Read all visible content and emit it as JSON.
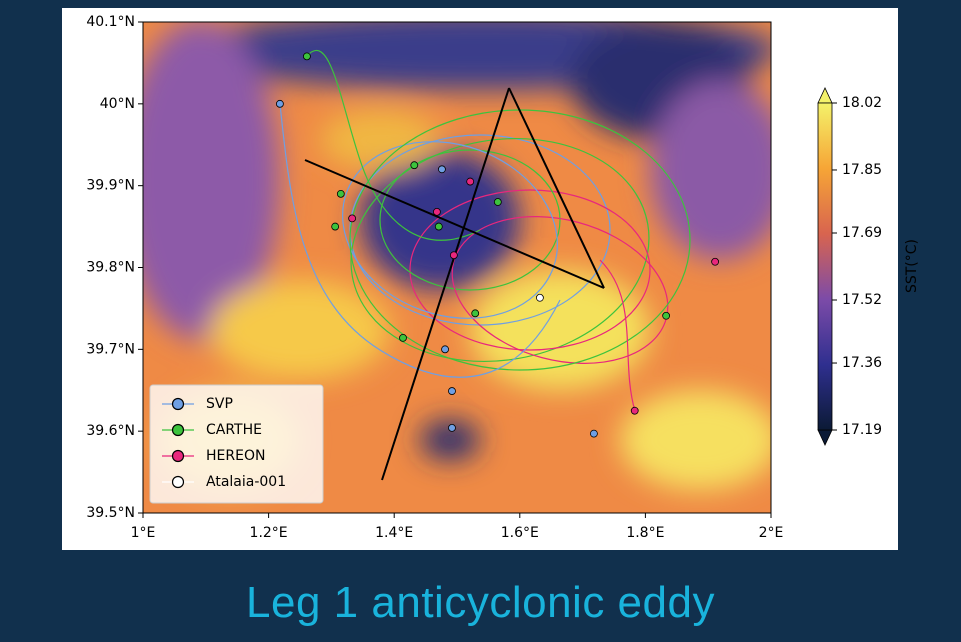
{
  "chart_data": {
    "type": "scatter",
    "xlim": [
      1,
      2
    ],
    "ylim": [
      39.5,
      40.1
    ],
    "xticks": [
      {
        "value": 1,
        "label": "1°E"
      },
      {
        "value": 1.2,
        "label": "1.2°E"
      },
      {
        "value": 1.4,
        "label": "1.4°E"
      },
      {
        "value": 1.6,
        "label": "1.6°E"
      },
      {
        "value": 1.8,
        "label": "1.8°E"
      },
      {
        "value": 2,
        "label": "2°E"
      }
    ],
    "yticks": [
      {
        "value": 39.5,
        "label": "39.5°N"
      },
      {
        "value": 39.6,
        "label": "39.6°N"
      },
      {
        "value": 39.7,
        "label": "39.7°N"
      },
      {
        "value": 39.8,
        "label": "39.8°N"
      },
      {
        "value": 39.9,
        "label": "39.9°N"
      },
      {
        "value": 40,
        "label": "40°N"
      },
      {
        "value": 40.1,
        "label": "40.1°N"
      }
    ],
    "series": [
      {
        "name": "SVP",
        "color": "#6f9fe3",
        "x": [
          1.218,
          1.476,
          1.481,
          1.492,
          1.492,
          1.718
        ],
        "y": [
          40.0,
          39.92,
          39.7,
          39.649,
          39.604,
          39.597
        ]
      },
      {
        "name": "CARTHE",
        "color": "#3dc33d",
        "x": [
          1.261,
          1.315,
          1.306,
          1.432,
          1.471,
          1.565,
          1.529,
          1.414,
          1.833
        ],
        "y": [
          40.058,
          39.89,
          39.85,
          39.925,
          39.85,
          39.88,
          39.744,
          39.714,
          39.741
        ]
      },
      {
        "name": "HEREON",
        "color": "#e8277d",
        "x": [
          1.333,
          1.468,
          1.521,
          1.495,
          1.911,
          1.783
        ],
        "y": [
          39.86,
          39.868,
          39.905,
          39.815,
          39.807,
          39.625
        ]
      },
      {
        "name": "Atalaia-001",
        "color": "#ffffff",
        "x": [
          1.632
        ],
        "y": [
          39.763
        ]
      }
    ],
    "colorbar": {
      "label": "SST(°C)",
      "lim": [
        17.19,
        18.02
      ],
      "ticks": [
        17.19,
        17.36,
        17.52,
        17.69,
        17.85,
        18.02
      ]
    }
  },
  "caption": "Leg 1 anticyclonic eddy"
}
